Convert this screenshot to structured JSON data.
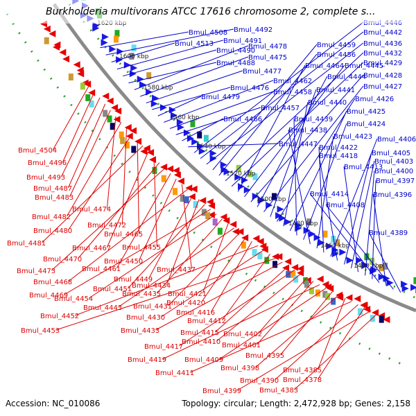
{
  "title": "Burkholderia multivorans ATCC 17616 chromosome 2, complete s...",
  "footer": {
    "accession": "Accession: NC_010086",
    "summary": "Topology: circular; Length: 2,472,928 bp; Genes: 2,158"
  },
  "colors": {
    "backbone": "#8a8a8a",
    "tick_dots": "#2e9e2e",
    "forward_label": "#0000cc",
    "reverse_label": "#dd0000",
    "forward_arrow": "#1a1ae6",
    "reverse_arrow": "#e60000"
  },
  "scale_ticks": [
    "1620 kbp",
    "1600 kbp",
    "1580 kbp",
    "1560 kbp",
    "1540 kbp",
    "1520 kbp",
    "1500 kbp",
    "1480 kbp",
    "1460 kbp",
    "1440 kbp"
  ],
  "forward_genes": [
    "Bmul_4508",
    "Bmul_4492",
    "Bmul_4513",
    "Bmul_4491",
    "Bmul_4490",
    "Bmul_4488",
    "Bmul_4478",
    "Bmul_4475",
    "Bmul_4477",
    "Bmul_4476",
    "Bmul_4479",
    "Bmul_4462",
    "Bmul_4458",
    "Bmul_4457",
    "Bmul_4466",
    "Bmul_4447",
    "Bmul_4446",
    "Bmul_4442",
    "Bmul_4436",
    "Bmul_4459",
    "Bmul_4456",
    "Bmul_4432",
    "Bmul_4429",
    "Bmul_4464",
    "Bmul_4445",
    "Bmul_4428",
    "Bmul_4444",
    "Bmul_4427",
    "Bmul_4441",
    "Bmul_4426",
    "Bmul_4440",
    "Bmul_4425",
    "Bmul_4439",
    "Bmul_4424",
    "Bmul_4438",
    "Bmul_4423",
    "Bmul_4422",
    "Bmul_4406",
    "Bmul_4418",
    "Bmul_4405",
    "Bmul_4403",
    "Bmul_4413",
    "Bmul_4400",
    "Bmul_4397",
    "Bmul_4414",
    "Bmul_4396",
    "Bmul_4408",
    "Bmul_4389"
  ],
  "reverse_genes": [
    "Bmul_4504",
    "Bmul_4496",
    "Bmul_4493",
    "Bmul_4487",
    "Bmul_4483",
    "Bmul_4474",
    "Bmul_4482",
    "Bmul_4472",
    "Bmul_4480",
    "Bmul_4465",
    "Bmul_4481",
    "Bmul_4467",
    "Bmul_4455",
    "Bmul_4470",
    "Bmul_4473",
    "Bmul_4461",
    "Bmul_4450",
    "Bmul_4437",
    "Bmul_4468",
    "Bmul_4449",
    "Bmul_4434",
    "Bmul_4451",
    "Bmul_4469",
    "Bmul_4454",
    "Bmul_4435",
    "Bmul_4421",
    "Bmul_4443",
    "Bmul_4431",
    "Bmul_4420",
    "Bmul_4416",
    "Bmul_4452",
    "Bmul_4430",
    "Bmul_4412",
    "Bmul_4453",
    "Bmul_4433",
    "Bmul_4415",
    "Bmul_4417",
    "Bmul_4410",
    "Bmul_4402",
    "Bmul_4401",
    "Bmul_4419",
    "Bmul_4409",
    "Bmul_4395",
    "Bmul_4398",
    "Bmul_4385",
    "Bmul_4411",
    "Bmul_4390",
    "Bmul_4378",
    "Bmul_4399",
    "Bmul_4383"
  ]
}
